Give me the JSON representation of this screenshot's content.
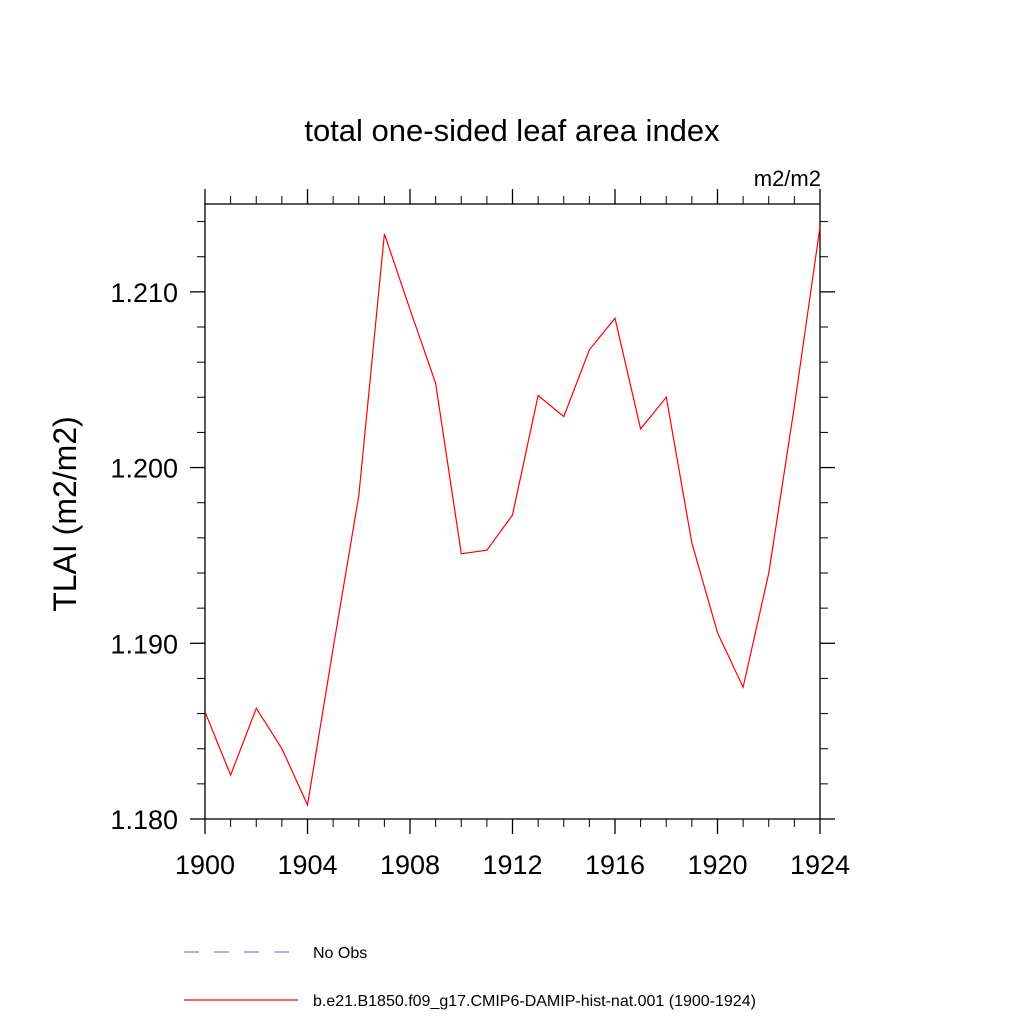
{
  "chart_data": {
    "type": "line",
    "title": "total one-sided leaf area index",
    "units_label": "m2/m2",
    "ylabel": "TLAI  (m2/m2)",
    "xlabel": "",
    "xlim": [
      1900,
      1924
    ],
    "ylim": [
      1.18,
      1.215
    ],
    "xticks": [
      1900,
      1904,
      1908,
      1912,
      1916,
      1920,
      1924
    ],
    "xtick_labels": [
      "1900",
      "1904",
      "1908",
      "1912",
      "1916",
      "1920",
      "1924"
    ],
    "yticks": [
      1.18,
      1.19,
      1.2,
      1.21
    ],
    "ytick_labels": [
      "1.180",
      "1.190",
      "1.200",
      "1.210"
    ],
    "grid": false,
    "legend_position": "bottom",
    "series": [
      {
        "name": "b.e21.B1850.f09_g17.CMIP6-DAMIP-hist-nat.001 (1900-1924)",
        "color": "#ff0000",
        "style": "solid",
        "x": [
          1900,
          1901,
          1902,
          1903,
          1904,
          1905,
          1906,
          1907,
          1908,
          1909,
          1910,
          1911,
          1912,
          1913,
          1914,
          1915,
          1916,
          1917,
          1918,
          1919,
          1920,
          1921,
          1922,
          1923,
          1924
        ],
        "y": [
          1.1861,
          1.1825,
          1.1863,
          1.184,
          1.1808,
          1.1897,
          1.1984,
          1.2133,
          1.209,
          1.2048,
          1.1951,
          1.1953,
          1.1973,
          1.2041,
          1.2029,
          1.2067,
          1.2085,
          1.2022,
          1.204,
          1.1957,
          1.1906,
          1.1875,
          1.194,
          1.2035,
          1.2137
        ]
      }
    ],
    "legend": [
      {
        "label": "No Obs",
        "color": "#8080e0",
        "style": "dashed"
      },
      {
        "label": "b.e21.B1850.f09_g17.CMIP6-DAMIP-hist-nat.001 (1900-1924)",
        "color": "#ff0000",
        "style": "solid"
      }
    ]
  }
}
